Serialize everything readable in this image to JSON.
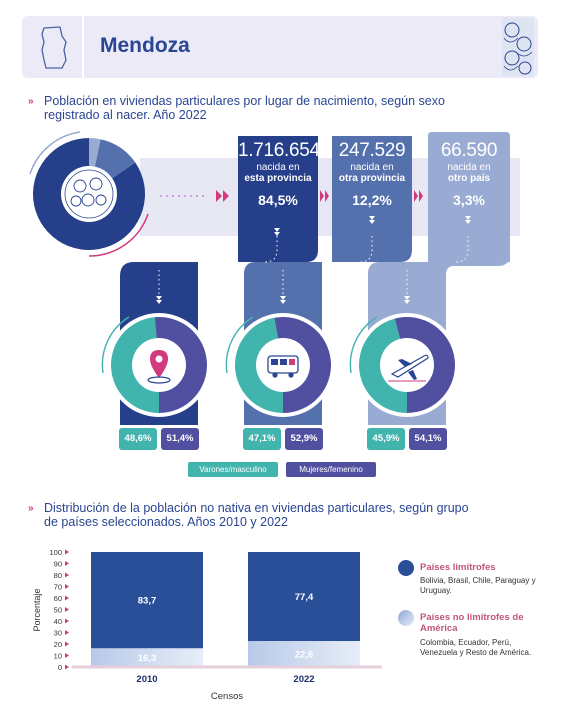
{
  "header": {
    "title": "Mendoza",
    "icon": "province-map-icon",
    "art": "faces-illustration"
  },
  "section1": {
    "title_line1": "Población en viviendas particulares por lugar de nacimiento, según sexo",
    "title_line2": "registrado al nacer. Año 2022"
  },
  "birthplace": [
    {
      "number": "1.716.654",
      "label_top": "nacida en",
      "label_bold": "esta provincia",
      "percent": "84,5%",
      "value": 84.5,
      "male": "48,6%",
      "female": "51,4%",
      "male_value": 48.6,
      "icon": "map-pin-icon"
    },
    {
      "number": "247.529",
      "label_top": "nacida en",
      "label_bold": "otra provincia",
      "percent": "12,2%",
      "value": 12.2,
      "male": "47,1%",
      "female": "52,9%",
      "male_value": 47.1,
      "icon": "bus-icon"
    },
    {
      "number": "66.590",
      "label_top": "nacida en",
      "label_bold": "otro país",
      "percent": "3,3%",
      "value": 3.3,
      "male": "45,9%",
      "female": "54,1%",
      "male_value": 45.9,
      "icon": "airplane-icon"
    }
  ],
  "sex_legend": {
    "male": "Varones/masculino",
    "female": "Mujeres/femenino"
  },
  "colors": {
    "panel1": "#253f8a",
    "panel2": "#5571ad",
    "panel3": "#99abd3",
    "male": "#41b4ae",
    "female": "#5150a0",
    "accent": "#d23a7f"
  },
  "section2": {
    "title_line1": "Distribución de la población no nativa en viviendas particulares, según grupo",
    "title_line2": "de países seleccionados. Años 2010 y 2022"
  },
  "chart_data": {
    "type": "bar",
    "stacked": true,
    "categories": [
      "2010",
      "2022"
    ],
    "series": [
      {
        "name": "Países limítrofes",
        "values": [
          83.7,
          77.4
        ],
        "labels": [
          "83,7",
          "77,4"
        ]
      },
      {
        "name": "Países no limítrofes de América",
        "values": [
          16.3,
          22.6
        ],
        "labels": [
          "16,3",
          "22,6"
        ]
      }
    ],
    "xlabel": "Censos",
    "ylabel": "Porcentaje",
    "ylim": [
      0,
      100
    ],
    "yticks": [
      0,
      10,
      20,
      30,
      40,
      50,
      60,
      70,
      80,
      90,
      100
    ],
    "legend": "right"
  },
  "legend2": [
    {
      "title": "Países limítrofes",
      "text": "Bolivia, Brasil, Chile, Paraguay y Uruguay.",
      "color": "#2a4f99"
    },
    {
      "title": "Países no limítrofes de América",
      "text": "Colombia, Ecuador, Perú, Venezuela y Resto de América.",
      "color": "#b7c8e6"
    }
  ]
}
